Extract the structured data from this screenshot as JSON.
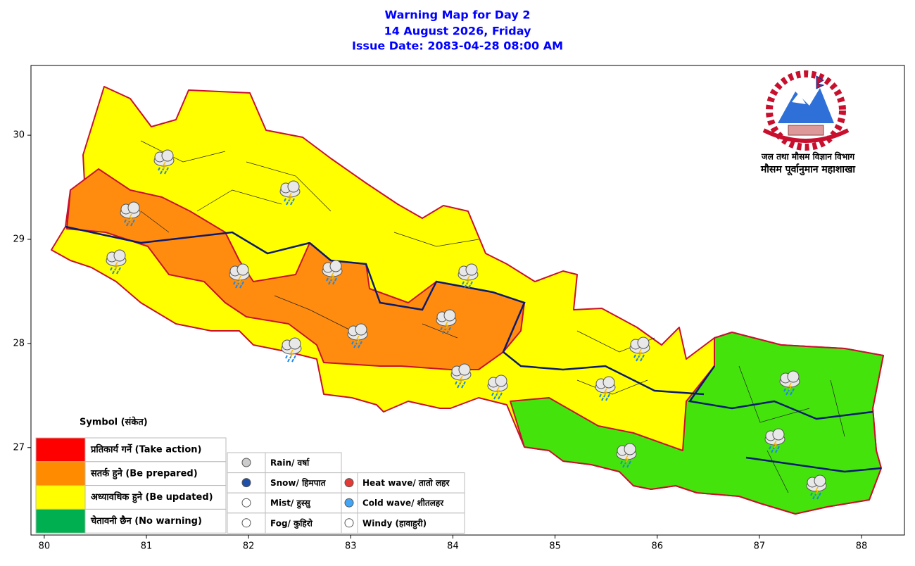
{
  "title": [
    "Warning Map for Day 2",
    "14 August 2026, Friday",
    "Issue Date: 2083-04-28 08:00 AM"
  ],
  "map": {
    "xlim": [
      79.87,
      88.42
    ],
    "ylim": [
      26.16,
      30.67
    ],
    "xticks": [
      80,
      81,
      82,
      83,
      84,
      85,
      86,
      87,
      88
    ],
    "yticks": [
      27,
      28,
      29,
      30
    ]
  },
  "org": {
    "line1": "जल तथा मौसम विज्ञान विभाग",
    "line2": "मौसम पूर्वानुमान महाशाखा"
  },
  "legend": {
    "title": "Symbol (संकेत)",
    "levels": [
      {
        "label": "प्रतिकार्य गर्ने (Take action)",
        "color": "#ff0000"
      },
      {
        "label": "सतर्क हुने (Be prepared)",
        "color": "#ff8c00"
      },
      {
        "label": "अध्यावधिक हुने (Be updated)",
        "color": "#ffff00"
      },
      {
        "label": "चेतावनी छैन (No warning)",
        "color": "#00b050"
      }
    ],
    "symbols": [
      "Rain/ वर्षा",
      "Snow/ हिमपात",
      "Mist/ हुस्सु",
      "Fog/ कुहिरो",
      "Heat wave/ तातो लहर",
      "Cold wave/ शीतलहर",
      "Windy (हावाहुरी)"
    ]
  }
}
